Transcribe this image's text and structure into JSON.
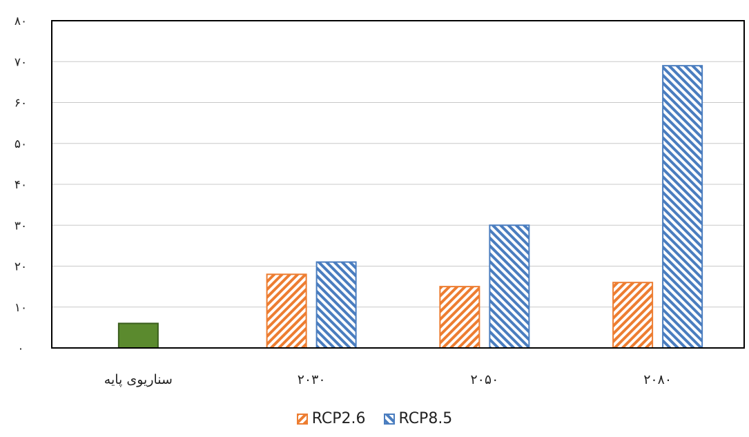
{
  "chart_data": {
    "type": "bar",
    "title": "",
    "xlabel": "",
    "ylabel": "",
    "ylim": [
      0,
      80
    ],
    "yticks": [
      0,
      10,
      20,
      30,
      40,
      50,
      60,
      70,
      80
    ],
    "ytick_labels": [
      "۰",
      "۱۰",
      "۲۰",
      "۳۰",
      "۴۰",
      "۵۰",
      "۶۰",
      "۷۰",
      "۸۰"
    ],
    "categories": [
      "سناریوی پایه",
      "۲۰۳۰",
      "۲۰۵۰",
      "۲۰۸۰"
    ],
    "series": [
      {
        "name": "",
        "color": "#5b8a2e",
        "pattern": "solid",
        "values": [
          6,
          null,
          null,
          null
        ]
      },
      {
        "name": "RCP2.6",
        "color": "#ed7d31",
        "pattern": "diagonal-up",
        "values": [
          null,
          18,
          15,
          16
        ]
      },
      {
        "name": "RCP8.5",
        "color": "#4a7dbf",
        "pattern": "diagonal-down",
        "values": [
          null,
          21,
          30,
          69
        ]
      }
    ],
    "grid": true,
    "legend_position": "bottom"
  }
}
